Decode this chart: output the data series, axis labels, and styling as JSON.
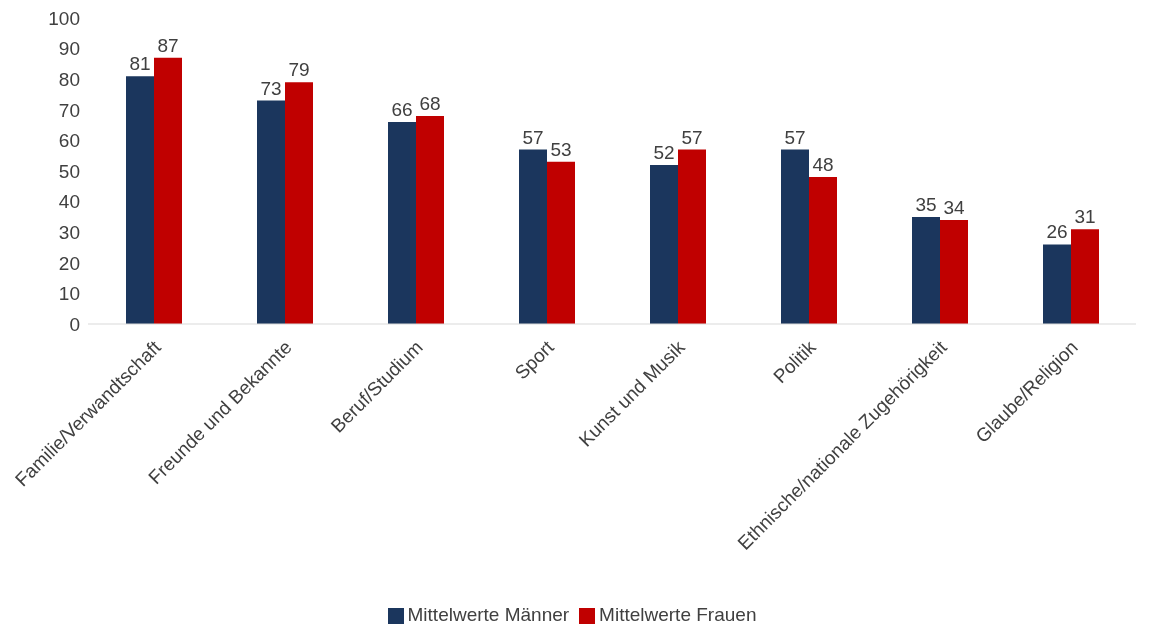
{
  "chart_data": {
    "type": "bar",
    "categories": [
      "Familie/Verwandtschaft",
      "Freunde und Bekannte",
      "Beruf/Studium",
      "Sport",
      "Kunst und Musik",
      "Politik",
      "Ethnische/nationale Zugehörigkeit",
      "Glaube/Religion"
    ],
    "series": [
      {
        "name": "Mittelwerte Männer",
        "color": "#1b365d",
        "values": [
          81,
          73,
          66,
          57,
          52,
          57,
          35,
          26
        ]
      },
      {
        "name": "Mittelwerte Frauen",
        "color": "#c00000",
        "values": [
          87,
          79,
          68,
          53,
          57,
          48,
          34,
          31
        ]
      }
    ],
    "ylim": [
      0,
      100
    ],
    "yticks": [
      0,
      10,
      20,
      30,
      40,
      50,
      60,
      70,
      80,
      90,
      100
    ],
    "data_labels": true,
    "legend": "bottom"
  }
}
